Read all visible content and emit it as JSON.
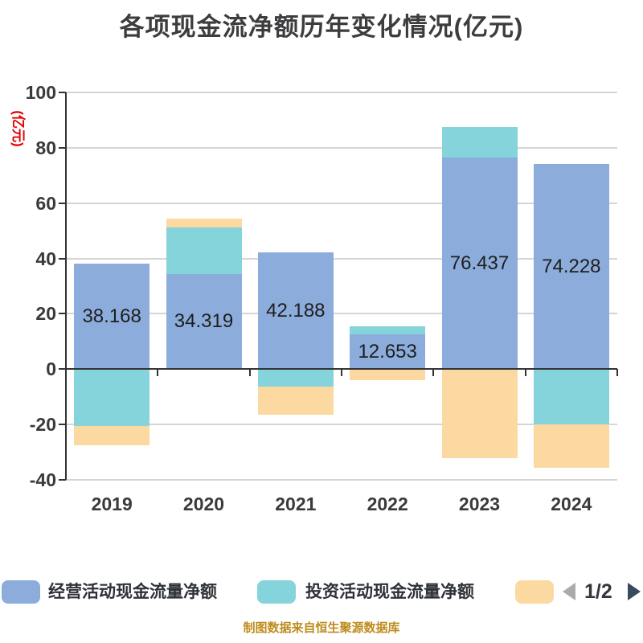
{
  "title": "各项现金流净额历年变化情况(亿元)",
  "y_axis_label": "(亿元)",
  "y_axis_label_color": "#e60000",
  "footer_note": "制图数据来自恒生聚源数据库",
  "footer_note_color": "#be8c1d",
  "legend": {
    "items": [
      {
        "label": "经营活动现金流量净额",
        "color": "#8cacdb"
      },
      {
        "label": "投资活动现金流量净额",
        "color": "#85d3db"
      },
      {
        "label": "",
        "color": "#fcd9a0"
      }
    ],
    "pagination": {
      "current": "1/2",
      "left_arrow_color": "#ababab",
      "right_arrow_color": "#3a4a5e"
    }
  },
  "chart_data": {
    "type": "bar",
    "stacked": true,
    "title": "各项现金流净额历年变化情况(亿元)",
    "ylabel": "(亿元)",
    "categories": [
      "2019",
      "2020",
      "2021",
      "2022",
      "2023",
      "2024"
    ],
    "series": [
      {
        "name": "经营活动现金流量净额",
        "color": "#8cacdb",
        "values": [
          38.168,
          34.319,
          42.188,
          12.653,
          76.437,
          74.228
        ],
        "labels": [
          "38.168",
          "34.319",
          "42.188",
          "12.653",
          "76.437",
          "74.228"
        ]
      },
      {
        "name": "投资活动现金流量净额",
        "color": "#85d3db",
        "values": [
          -20.5,
          16.9,
          -6.3,
          2.9,
          11.1,
          -20.0
        ],
        "estimated_from_pixels": true
      },
      {
        "name": "",
        "color": "#fcd9a0",
        "values": [
          -7.1,
          3.2,
          -10.2,
          -4.0,
          -32.2,
          -15.6
        ],
        "estimated_from_pixels": true
      }
    ],
    "ylim": [
      -40,
      100
    ],
    "yticks": [
      100,
      80,
      60,
      40,
      20,
      0,
      -20,
      -40
    ],
    "ytick_labels": [
      "100",
      "80",
      "60",
      "40",
      "20",
      "0",
      "-20",
      "-40"
    ],
    "grid": true,
    "legend_position": "bottom"
  }
}
